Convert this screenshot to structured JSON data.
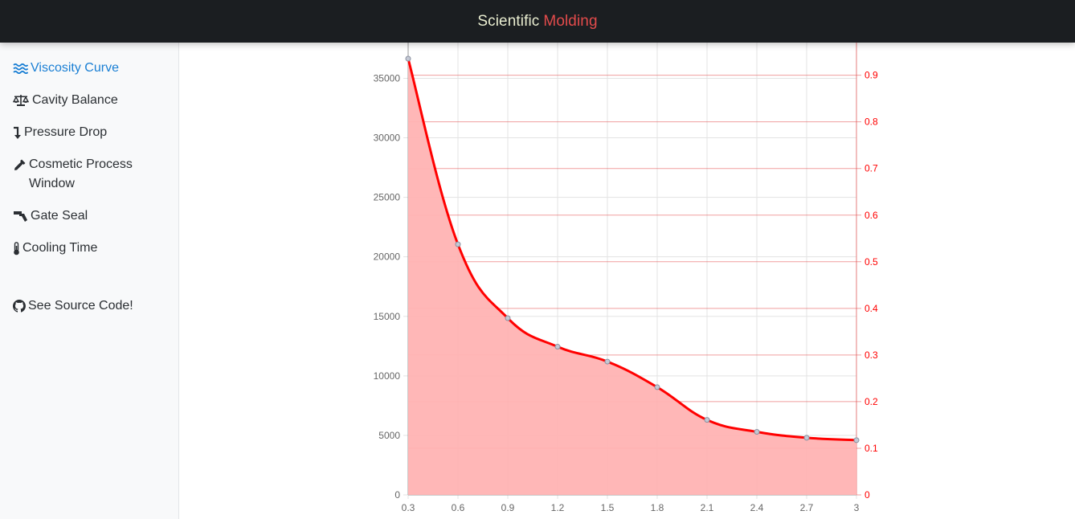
{
  "header": {
    "title_main": "Scientific",
    "title_accent": "Molding"
  },
  "sidebar": {
    "items": [
      {
        "label": "Viscosity Curve",
        "icon": "water-waves-icon",
        "active": true
      },
      {
        "label": "Cavity Balance",
        "icon": "balance-scale-icon",
        "active": false
      },
      {
        "label": "Pressure Drop",
        "icon": "level-down-arrow-icon",
        "active": false
      },
      {
        "label": "Cosmetic Process Window",
        "icon": "eyedropper-icon",
        "active": false
      },
      {
        "label": "Gate Seal",
        "icon": "gavel-icon",
        "active": false
      },
      {
        "label": "Cooling Time",
        "icon": "thermometer-icon",
        "active": false
      }
    ],
    "source": {
      "label": "See Source Code!",
      "icon": "github-icon"
    }
  },
  "colors": {
    "accent": "#1a7fd4",
    "series": "#ff0000",
    "fill": "#ffb3b3",
    "header_bg": "#1b1e21"
  },
  "chart_data": {
    "type": "area",
    "title": "",
    "x": [
      0.3,
      0.6,
      0.9,
      1.2,
      1.5,
      1.8,
      2.1,
      2.4,
      2.7,
      3
    ],
    "x_ticks": [
      "0.3",
      "0.6",
      "0.9",
      "1.2",
      "1.5",
      "1.8",
      "2.1",
      "2.4",
      "2.7",
      "3"
    ],
    "xlim": [
      0.3,
      3
    ],
    "series": [
      {
        "axis": "left",
        "values": [
          36650,
          21050,
          14850,
          12450,
          11200,
          9050,
          6300,
          5300,
          4800,
          4600
        ]
      }
    ],
    "y_left": {
      "ylim": [
        0,
        38000
      ],
      "ticks": [
        0,
        5000,
        10000,
        15000,
        20000,
        25000,
        30000,
        35000
      ]
    },
    "y_right": {
      "ylim": [
        0,
        0.97
      ],
      "ticks": [
        0,
        0.1,
        0.2,
        0.3,
        0.4,
        0.5,
        0.6,
        0.7,
        0.8,
        0.9
      ]
    },
    "grid": true,
    "legend": "none"
  }
}
